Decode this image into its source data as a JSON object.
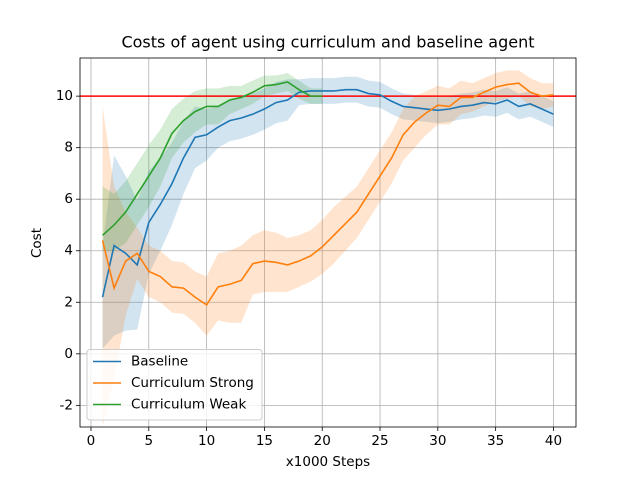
{
  "chart_data": {
    "type": "line",
    "title": "Costs of agent using curriculum and baseline agent",
    "xlabel": "x1000 Steps",
    "ylabel": "Cost",
    "x": [
      1,
      2,
      3,
      4,
      5,
      6,
      7,
      8,
      9,
      10,
      11,
      12,
      13,
      14,
      15,
      16,
      17,
      18,
      19,
      20,
      21,
      22,
      23,
      24,
      25,
      26,
      27,
      28,
      29,
      30,
      31,
      32,
      33,
      34,
      35,
      36,
      37,
      38,
      39,
      40
    ],
    "xlim": [
      -0.95,
      41.95
    ],
    "ylim": [
      -2.84,
      11.48
    ],
    "xticks": [
      0,
      5,
      10,
      15,
      20,
      25,
      30,
      35,
      40
    ],
    "yticks": [
      -2,
      0,
      2,
      4,
      6,
      8,
      10
    ],
    "grid": true,
    "legend": "lower left",
    "hline": {
      "value": 10,
      "color": "#ff0000"
    },
    "series": [
      {
        "name": "Baseline",
        "color": "#1f77b4",
        "values": [
          2.2,
          4.2,
          3.9,
          3.45,
          5.1,
          5.8,
          6.6,
          7.6,
          8.4,
          8.5,
          8.8,
          9.05,
          9.15,
          9.3,
          9.5,
          9.75,
          9.85,
          10.15,
          10.2,
          10.2,
          10.2,
          10.25,
          10.25,
          10.1,
          10.05,
          9.8,
          9.6,
          9.55,
          9.5,
          9.45,
          9.5,
          9.6,
          9.65,
          9.75,
          9.7,
          9.85,
          9.6,
          9.7,
          9.5,
          9.3
        ],
        "lower": [
          0.2,
          0.7,
          0.9,
          0.95,
          3.1,
          4.0,
          5.0,
          6.2,
          7.2,
          7.5,
          8.0,
          8.25,
          8.35,
          8.5,
          8.7,
          8.95,
          9.05,
          9.65,
          9.7,
          9.7,
          9.7,
          9.75,
          9.75,
          9.6,
          9.55,
          9.3,
          9.1,
          9.05,
          9.0,
          8.95,
          9.0,
          9.1,
          9.15,
          9.25,
          9.2,
          9.35,
          9.1,
          9.2,
          9.0,
          8.8
        ],
        "upper": [
          4.2,
          7.7,
          6.9,
          5.95,
          7.1,
          7.6,
          8.2,
          9.0,
          9.6,
          9.5,
          9.6,
          9.85,
          9.95,
          10.1,
          10.3,
          10.55,
          10.65,
          10.65,
          10.7,
          10.7,
          10.7,
          10.75,
          10.75,
          10.6,
          10.55,
          10.3,
          10.1,
          10.05,
          10.0,
          9.95,
          10.0,
          10.1,
          10.15,
          10.25,
          10.2,
          10.35,
          10.1,
          10.2,
          10.0,
          9.8
        ]
      },
      {
        "name": "Curriculum Strong",
        "color": "#ff7f0e",
        "values": [
          4.4,
          2.55,
          3.6,
          3.9,
          3.2,
          3.0,
          2.6,
          2.55,
          2.2,
          1.9,
          2.6,
          2.7,
          2.85,
          3.5,
          3.6,
          3.55,
          3.45,
          3.6,
          3.8,
          4.15,
          4.6,
          5.05,
          5.5,
          6.2,
          6.9,
          7.6,
          8.5,
          9.0,
          9.35,
          9.65,
          9.6,
          9.95,
          9.95,
          10.15,
          10.35,
          10.45,
          10.5,
          10.15,
          10.0,
          10.05
        ],
        "lower": [
          -2.8,
          -1.0,
          1.5,
          2.9,
          2.2,
          2.0,
          1.6,
          1.55,
          1.2,
          0.7,
          1.3,
          1.2,
          1.2,
          2.3,
          2.4,
          2.4,
          2.4,
          2.6,
          2.8,
          3.1,
          3.5,
          4.0,
          4.5,
          5.2,
          5.9,
          6.6,
          7.5,
          8.0,
          8.5,
          8.9,
          8.9,
          9.3,
          9.4,
          9.6,
          9.8,
          9.9,
          10.0,
          9.6,
          9.5,
          9.6
        ],
        "upper": [
          9.6,
          6.5,
          5.5,
          4.9,
          4.2,
          4.0,
          3.6,
          3.55,
          3.2,
          3.0,
          3.9,
          4.0,
          4.2,
          4.6,
          4.8,
          4.7,
          4.5,
          4.6,
          4.8,
          5.2,
          5.7,
          6.1,
          6.5,
          7.2,
          7.9,
          8.6,
          9.5,
          10.0,
          10.2,
          10.4,
          10.3,
          10.6,
          10.5,
          10.7,
          10.9,
          11.0,
          11.0,
          10.7,
          10.5,
          10.5
        ]
      },
      {
        "name": "Curriculum Weak",
        "color": "#2ca02c",
        "values": [
          4.6,
          5.0,
          5.5,
          6.2,
          6.9,
          7.6,
          8.55,
          9.05,
          9.4,
          9.6,
          9.6,
          9.85,
          9.95,
          10.15,
          10.4,
          10.45,
          10.55,
          10.25,
          10.0,
          10.0,
          null,
          null,
          null,
          null,
          null,
          null,
          null,
          null,
          null,
          null,
          null,
          null,
          null,
          null,
          null,
          null,
          null,
          null,
          null,
          null
        ],
        "lower": [
          4.0,
          4.0,
          4.3,
          5.0,
          5.7,
          6.5,
          7.6,
          8.2,
          8.6,
          8.9,
          8.9,
          9.3,
          9.5,
          9.7,
          10.0,
          10.1,
          10.2,
          9.9,
          9.7,
          9.7,
          null,
          null,
          null,
          null,
          null,
          null,
          null,
          null,
          null,
          null,
          null,
          null,
          null,
          null,
          null,
          null,
          null,
          null,
          null,
          null
        ],
        "upper": [
          6.5,
          6.2,
          6.7,
          7.4,
          8.1,
          8.7,
          9.5,
          9.9,
          10.2,
          10.3,
          10.3,
          10.4,
          10.4,
          10.6,
          10.8,
          10.8,
          10.9,
          10.6,
          10.3,
          10.3,
          null,
          null,
          null,
          null,
          null,
          null,
          null,
          null,
          null,
          null,
          null,
          null,
          null,
          null,
          null,
          null,
          null,
          null,
          null,
          null
        ]
      }
    ]
  }
}
